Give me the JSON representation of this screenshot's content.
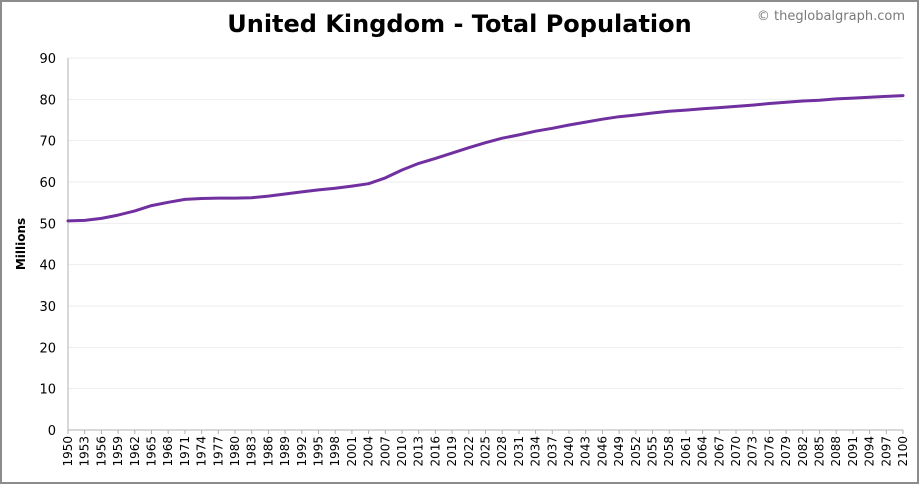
{
  "header": {
    "title": "United Kingdom - Total Population",
    "credit": "© theglobalgraph.com"
  },
  "colors": {
    "series": "#7030a0",
    "grid": "#eeeeee",
    "axis": "#b0b0b0",
    "frame": "#8c8c8c"
  },
  "chart_data": {
    "type": "line",
    "title": "United Kingdom - Total Population",
    "xlabel": "",
    "ylabel": "Millions",
    "ylim": [
      0,
      90
    ],
    "yticks": [
      0,
      10,
      20,
      30,
      40,
      50,
      60,
      70,
      80,
      90
    ],
    "xlim": [
      1950,
      2100
    ],
    "xtick_labels": [
      "1950",
      "1953",
      "1956",
      "1959",
      "1962",
      "1965",
      "1968",
      "1971",
      "1974",
      "1977",
      "1980",
      "1983",
      "1986",
      "1989",
      "1992",
      "1995",
      "1998",
      "2001",
      "2004",
      "2007",
      "2010",
      "2013",
      "2016",
      "2019",
      "2022",
      "2025",
      "2028",
      "2031",
      "2034",
      "2037",
      "2040",
      "2043",
      "2046",
      "2049",
      "2052",
      "2055",
      "2058",
      "2061",
      "2064",
      "2067",
      "2070",
      "2073",
      "2076",
      "2079",
      "2082",
      "2085",
      "2088",
      "2091",
      "2094",
      "2097",
      "2100"
    ],
    "grid": true,
    "legend": "none",
    "series": [
      {
        "x": [
          1950,
          1953,
          1956,
          1959,
          1962,
          1965,
          1968,
          1971,
          1974,
          1977,
          1980,
          1983,
          1986,
          1989,
          1992,
          1995,
          1998,
          2001,
          2004,
          2007,
          2010,
          2013,
          2016,
          2019,
          2022,
          2025,
          2028,
          2031,
          2034,
          2037,
          2040,
          2043,
          2046,
          2049,
          2052,
          2055,
          2058,
          2061,
          2064,
          2067,
          2070,
          2073,
          2076,
          2079,
          2082,
          2085,
          2088,
          2091,
          2094,
          2097,
          2100
        ],
        "values": [
          50.6,
          50.7,
          51.2,
          52.0,
          53.0,
          54.3,
          55.1,
          55.8,
          56.0,
          56.1,
          56.1,
          56.2,
          56.6,
          57.1,
          57.6,
          58.1,
          58.5,
          59.0,
          59.6,
          61.0,
          62.9,
          64.5,
          65.7,
          67.0,
          68.3,
          69.5,
          70.6,
          71.4,
          72.3,
          73.0,
          73.8,
          74.5,
          75.2,
          75.8,
          76.2,
          76.7,
          77.1,
          77.4,
          77.7,
          78.0,
          78.3,
          78.6,
          79.0,
          79.3,
          79.6,
          79.8,
          80.1,
          80.3,
          80.5,
          80.7,
          80.9
        ]
      }
    ]
  }
}
